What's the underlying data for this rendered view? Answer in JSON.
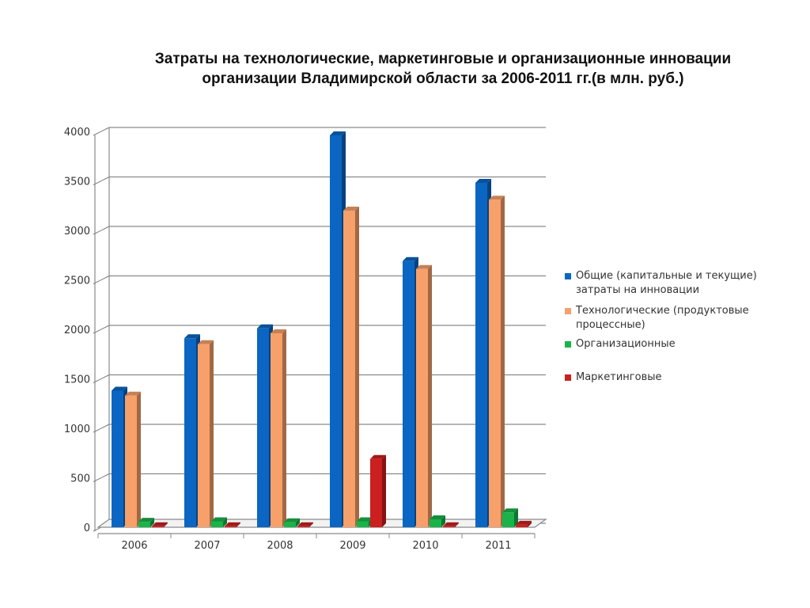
{
  "title": {
    "line1": "Затраты на технологические, маркетинговые и организационные инновации",
    "line2": "организации Владимирской области за 2006-2011 гг.(в млн. руб.)"
  },
  "colors": {
    "series": [
      "#0a66c2",
      "#f7a06a",
      "#19b34a",
      "#cc1f1f"
    ]
  },
  "chart_data": {
    "type": "bar",
    "title": "Затраты на технологические, маркетинговые и организационные инновации организации Владимирской области за 2006-2011 гг.(в млн. руб.)",
    "xlabel": "",
    "ylabel": "",
    "ylim": [
      0,
      4000
    ],
    "yticks": [
      "0",
      "500",
      "1000",
      "1500",
      "2000",
      "2500",
      "3000",
      "3500",
      "4000"
    ],
    "grid": true,
    "legend_position": "right",
    "categories": [
      "2006",
      "2007",
      "2008",
      "2009",
      "2010",
      "2011"
    ],
    "series": [
      {
        "name": "Общие (капитальные и текущие) затраты на инновации",
        "values": [
          1380,
          1910,
          2010,
          3960,
          2690,
          3480
        ]
      },
      {
        "name": "Технологические (продуктовые процессные)",
        "values": [
          1330,
          1850,
          1960,
          3200,
          2610,
          3310
        ]
      },
      {
        "name": "Организационные",
        "values": [
          55,
          60,
          50,
          60,
          80,
          150
        ]
      },
      {
        "name": "Маркетинговые",
        "values": [
          10,
          10,
          10,
          690,
          10,
          25
        ]
      }
    ]
  }
}
